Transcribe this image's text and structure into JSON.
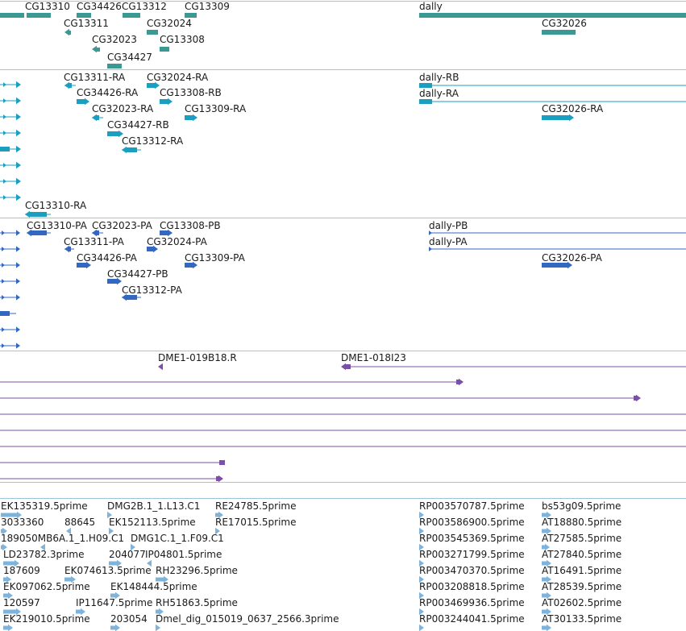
{
  "colors": {
    "gene": "#3a9a93",
    "mrna": "#1a9fc0",
    "cds": "#3368c2",
    "clone": "#7b50a8",
    "est": "#7eb4dc"
  },
  "tracks": {
    "genes": {
      "features": [
        {
          "label": "",
          "kind": "bar"
        },
        {
          "label": "CG13310",
          "kind": "bar"
        },
        {
          "label": "CG34426",
          "kind": "bar"
        },
        {
          "label": "CG13312",
          "kind": "bar"
        },
        {
          "label": "CG13309",
          "kind": "bar"
        },
        {
          "label": "CG13311",
          "kind": "arrow-left"
        },
        {
          "label": "CG32024",
          "kind": "bar"
        },
        {
          "label": "CG32023",
          "kind": "arrow-left"
        },
        {
          "label": "CG13308",
          "kind": "bar"
        },
        {
          "label": "CG34427",
          "kind": "bar"
        },
        {
          "label": "dally",
          "kind": "bar"
        },
        {
          "label": "CG32026",
          "kind": "bar"
        }
      ]
    },
    "mrna": {
      "features": [
        {
          "label": "CG13311-RA"
        },
        {
          "label": "CG32024-RA"
        },
        {
          "label": "CG34426-RA"
        },
        {
          "label": "CG13308-RB"
        },
        {
          "label": "CG32023-RA"
        },
        {
          "label": "CG13309-RA"
        },
        {
          "label": "CG34427-RB"
        },
        {
          "label": "CG13312-RA"
        },
        {
          "label": "CG13310-RA"
        },
        {
          "label": "dally-RB"
        },
        {
          "label": "dally-RA"
        },
        {
          "label": "CG32026-RA"
        }
      ]
    },
    "cds": {
      "features": [
        {
          "label": "CG13310-PA"
        },
        {
          "label": "CG32023-PA"
        },
        {
          "label": "CG13308-PB"
        },
        {
          "label": "CG13311-PA"
        },
        {
          "label": "CG32024-PA"
        },
        {
          "label": "CG34426-PA"
        },
        {
          "label": "CG13309-PA"
        },
        {
          "label": "CG34427-PB"
        },
        {
          "label": "CG13312-PA"
        },
        {
          "label": "dally-PB"
        },
        {
          "label": "dally-PA"
        },
        {
          "label": "CG32026-PA"
        }
      ]
    },
    "clones": {
      "features": [
        {
          "label": "DME1-019B18.R"
        },
        {
          "label": "DME1-018I23"
        }
      ]
    },
    "ests": {
      "features": [
        {
          "label": "EK135319.5prime"
        },
        {
          "label": "DMG2B.1_1.L13.C1"
        },
        {
          "label": "RE24785.5prime"
        },
        {
          "label": "RP003570787.5prime"
        },
        {
          "label": "bs53g09.5prime"
        },
        {
          "label": "3033360"
        },
        {
          "label": "88645"
        },
        {
          "label": "EK152113.5prime"
        },
        {
          "label": "RE17015.5prime"
        },
        {
          "label": "RP003586900.5prime"
        },
        {
          "label": "AT18880.5prime"
        },
        {
          "label": "189050MB6A.1_1.H09.C1"
        },
        {
          "label": "DMG1C.1_1.F09.C1"
        },
        {
          "label": "RP003545369.5prime"
        },
        {
          "label": "AT27585.5prime"
        },
        {
          "label": "LD23782.3prime"
        },
        {
          "label": "204077"
        },
        {
          "label": "IP04801.5prime"
        },
        {
          "label": "RP003271799.5prime"
        },
        {
          "label": "AT27840.5prime"
        },
        {
          "label": "187609"
        },
        {
          "label": "EK074613.5prime"
        },
        {
          "label": "RH23296.5prime"
        },
        {
          "label": "RP003470370.5prime"
        },
        {
          "label": "AT16491.5prime"
        },
        {
          "label": "EK097062.5prime"
        },
        {
          "label": "EK148444.5prime"
        },
        {
          "label": "RP003208818.5prime"
        },
        {
          "label": "AT28539.5prime"
        },
        {
          "label": "120597"
        },
        {
          "label": "IP11647.5prime"
        },
        {
          "label": "RH51863.5prime"
        },
        {
          "label": "RP003469936.5prime"
        },
        {
          "label": "AT02602.5prime"
        },
        {
          "label": "EK219010.5prime"
        },
        {
          "label": "203054"
        },
        {
          "label": "Dmel_dig_015019_0637_2566.3prime"
        },
        {
          "label": "RP003244041.5prime"
        },
        {
          "label": "AT30133.5prime"
        }
      ]
    }
  }
}
